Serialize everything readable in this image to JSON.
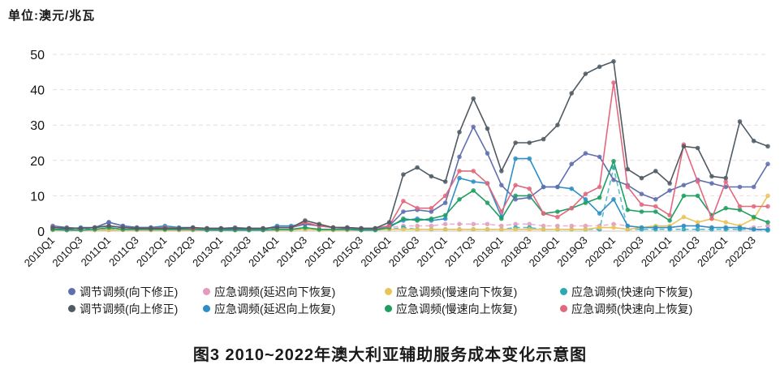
{
  "unit_label": "单位:澳元/兆瓦",
  "caption": "图3  2010~2022年澳大利亚辅助服务成本变化示意图",
  "chart_data": {
    "type": "line",
    "title": "2010~2022年澳大利亚辅助服务成本变化示意图",
    "ylabel": "澳元/兆瓦",
    "xlabel": "",
    "ylim": [
      0,
      50
    ],
    "y_ticks": [
      0,
      10,
      20,
      30,
      40,
      50
    ],
    "grid": "horizontal-dashed",
    "legend_position": "bottom",
    "marker": "circle",
    "x_tick_labels": [
      "2010Q1",
      "2010Q3",
      "2011Q1",
      "2011Q3",
      "2012Q1",
      "2012Q3",
      "2013Q1",
      "2013Q3",
      "2014Q1",
      "2014Q3",
      "2015Q1",
      "2015Q3",
      "2016Q1",
      "2016Q3",
      "2017Q1",
      "2017Q3",
      "2018Q1",
      "2018Q3",
      "2019Q1",
      "2019Q3",
      "2020Q1",
      "2020Q3",
      "2021Q1",
      "2021Q3",
      "2022Q1",
      "2022Q3"
    ],
    "x": [
      "2010Q1",
      "2010Q2",
      "2010Q3",
      "2010Q4",
      "2011Q1",
      "2011Q2",
      "2011Q3",
      "2011Q4",
      "2012Q1",
      "2012Q2",
      "2012Q3",
      "2012Q4",
      "2013Q1",
      "2013Q2",
      "2013Q3",
      "2013Q4",
      "2014Q1",
      "2014Q2",
      "2014Q3",
      "2014Q4",
      "2015Q1",
      "2015Q2",
      "2015Q3",
      "2015Q4",
      "2016Q1",
      "2016Q2",
      "2016Q3",
      "2016Q4",
      "2017Q1",
      "2017Q2",
      "2017Q3",
      "2017Q4",
      "2018Q1",
      "2018Q2",
      "2018Q3",
      "2018Q4",
      "2019Q1",
      "2019Q2",
      "2019Q3",
      "2019Q4",
      "2020Q1",
      "2020Q2",
      "2020Q3",
      "2020Q4",
      "2021Q1",
      "2021Q2",
      "2021Q3",
      "2021Q4",
      "2022Q1",
      "2022Q2",
      "2022Q3",
      "2022Q4"
    ],
    "series": [
      {
        "name": "应急调频(延迟向下恢复)",
        "color": "#e39abc",
        "dashed": true,
        "values": [
          0.5,
          0.5,
          0.5,
          0.5,
          1.0,
          0.5,
          0.5,
          0.5,
          0.5,
          0.5,
          0.5,
          0.5,
          0.5,
          0.5,
          0.5,
          0.5,
          0.5,
          0.5,
          1.0,
          0.5,
          0.5,
          0.5,
          0.5,
          0.5,
          1.0,
          1.5,
          1.5,
          1.5,
          2.0,
          2.0,
          2.0,
          2.0,
          1.5,
          2.0,
          2.0,
          1.5,
          1.5,
          1.5,
          1.5,
          1.5,
          2.0,
          1.5,
          1.0,
          1.0,
          1.0,
          1.5,
          1.5,
          1.0,
          1.0,
          1.0,
          1.0,
          1.5
        ]
      },
      {
        "name": "应急调频(快速向下恢复)",
        "color": "#2aa8b4",
        "dashed": true,
        "values": [
          0.5,
          0.5,
          0.5,
          0.5,
          0.5,
          0.5,
          0.5,
          0.5,
          0.5,
          0.5,
          0.5,
          0.5,
          0.5,
          0.5,
          0.5,
          0.5,
          0.5,
          0.5,
          0.5,
          0.5,
          0.5,
          0.5,
          0.5,
          0.5,
          0.5,
          1.0,
          0.5,
          0.5,
          0.5,
          0.5,
          0.5,
          0.5,
          0.5,
          1.0,
          1.0,
          0.5,
          0.5,
          0.5,
          0.5,
          0.5,
          18.0,
          0.5,
          0.5,
          0.5,
          0.5,
          0.5,
          0.5,
          0.5,
          0.5,
          0.5,
          0.5,
          0.2
        ]
      },
      {
        "name": "应急调频(慢速向下恢复)",
        "color": "#e9c45a",
        "dashed": false,
        "values": [
          0.3,
          0.3,
          0.3,
          0.3,
          0.3,
          0.3,
          0.3,
          0.3,
          0.3,
          0.3,
          0.3,
          0.3,
          0.3,
          0.3,
          0.3,
          0.3,
          0.3,
          0.3,
          0.5,
          0.3,
          0.3,
          0.3,
          0.3,
          0.3,
          0.5,
          0.5,
          0.5,
          0.5,
          0.5,
          0.5,
          0.5,
          0.5,
          0.5,
          0.5,
          0.5,
          0.5,
          0.5,
          0.5,
          0.5,
          1.0,
          1.0,
          0.5,
          1.0,
          1.5,
          1.5,
          4.0,
          2.5,
          3.5,
          2.5,
          1.5,
          3.5,
          10.0
        ]
      },
      {
        "name": "应急调频(延迟向上恢复)",
        "color": "#2e8fc6",
        "dashed": false,
        "values": [
          0.5,
          0.5,
          1.0,
          1.0,
          2.5,
          1.5,
          1.0,
          1.0,
          1.5,
          1.0,
          1.0,
          0.5,
          0.5,
          0.5,
          0.5,
          0.5,
          1.5,
          1.5,
          2.0,
          1.5,
          1.0,
          1.0,
          0.5,
          0.5,
          1.5,
          3.0,
          3.5,
          3.0,
          3.5,
          15.0,
          14.0,
          13.5,
          4.0,
          20.5,
          20.5,
          12.5,
          12.5,
          12.0,
          9.0,
          5.0,
          9.0,
          1.5,
          1.0,
          1.0,
          1.0,
          1.5,
          1.5,
          1.0,
          1.0,
          1.0,
          0.5,
          0.5
        ]
      },
      {
        "name": "应急调频(慢速向上恢复)",
        "color": "#1f9e62",
        "dashed": false,
        "values": [
          0.5,
          0.3,
          0.3,
          0.5,
          1.0,
          0.5,
          0.5,
          0.5,
          0.5,
          0.5,
          0.5,
          0.3,
          0.3,
          0.3,
          0.3,
          0.3,
          0.5,
          0.5,
          1.0,
          0.5,
          0.5,
          0.5,
          0.3,
          0.3,
          1.0,
          3.5,
          3.0,
          3.5,
          4.5,
          9.0,
          11.5,
          8.0,
          3.5,
          10.0,
          10.0,
          5.0,
          5.5,
          6.5,
          8.0,
          9.5,
          19.8,
          6.0,
          5.5,
          5.5,
          3.0,
          10.0,
          10.0,
          4.5,
          6.5,
          6.0,
          4.0,
          2.5
        ]
      },
      {
        "name": "调节调频(向下修正)",
        "color": "#5f6fae",
        "dashed": false,
        "values": [
          1.5,
          1.0,
          0.8,
          1.0,
          2.5,
          1.5,
          1.0,
          1.0,
          1.0,
          0.8,
          0.8,
          0.8,
          0.8,
          1.0,
          0.8,
          0.8,
          1.0,
          1.0,
          2.0,
          1.5,
          1.0,
          0.8,
          0.8,
          0.8,
          1.5,
          5.5,
          6.0,
          5.5,
          8.0,
          21.0,
          29.5,
          22.0,
          13.0,
          9.0,
          9.5,
          12.5,
          12.5,
          19.0,
          22.0,
          21.0,
          14.5,
          13.0,
          10.5,
          9.0,
          11.5,
          13.0,
          14.5,
          13.5,
          12.5,
          12.5,
          12.5,
          19.0
        ]
      },
      {
        "name": "应急调频(快速向上恢复)",
        "color": "#e2687e",
        "dashed": false,
        "values": [
          1.0,
          0.8,
          0.8,
          1.0,
          1.5,
          1.0,
          0.8,
          0.8,
          1.0,
          0.8,
          0.8,
          0.8,
          0.8,
          0.8,
          0.8,
          0.8,
          1.0,
          1.0,
          2.5,
          1.5,
          1.0,
          1.0,
          0.8,
          0.8,
          1.5,
          8.5,
          6.5,
          6.5,
          10.0,
          17.0,
          17.0,
          13.5,
          5.5,
          13.0,
          12.0,
          5.0,
          4.0,
          6.5,
          10.5,
          12.5,
          42.0,
          12.5,
          7.5,
          7.0,
          4.5,
          24.5,
          14.0,
          3.5,
          14.0,
          7.0,
          7.0,
          7.0
        ]
      },
      {
        "name": "调节调频(向上修正)",
        "color": "#4f5a63",
        "dashed": false,
        "values": [
          1.0,
          0.8,
          0.8,
          1.0,
          1.5,
          1.0,
          0.8,
          0.8,
          0.8,
          0.8,
          1.0,
          0.8,
          0.8,
          0.8,
          0.8,
          0.8,
          1.0,
          1.0,
          3.0,
          2.0,
          1.0,
          1.0,
          0.8,
          0.8,
          2.5,
          16.0,
          18.0,
          15.5,
          14.0,
          28.0,
          37.5,
          29.0,
          17.0,
          25.0,
          25.0,
          26.0,
          30.0,
          39.0,
          44.5,
          46.5,
          48.0,
          17.5,
          15.0,
          17.0,
          13.5,
          24.0,
          23.5,
          15.5,
          15.0,
          31.0,
          25.5,
          24.0
        ]
      }
    ],
    "legend_order": [
      5,
      0,
      2,
      1,
      7,
      3,
      4,
      6
    ]
  }
}
